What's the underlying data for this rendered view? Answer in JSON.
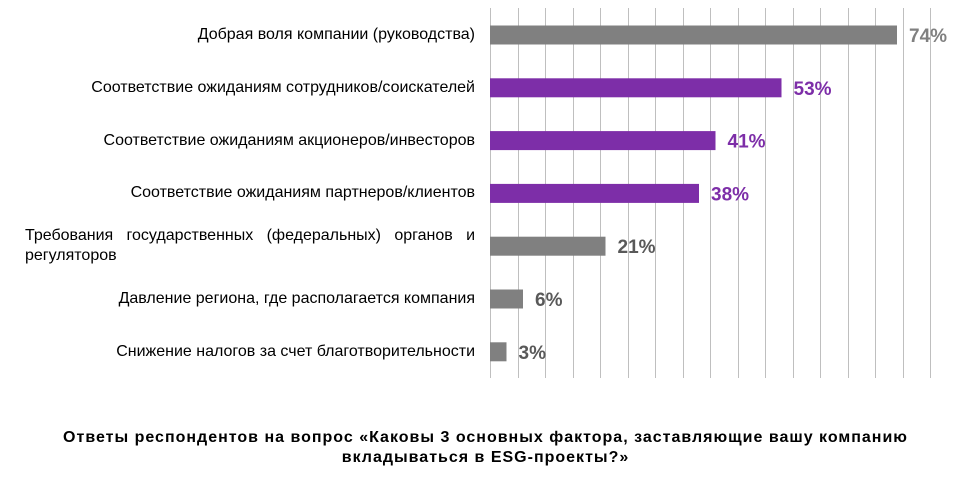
{
  "chart_data": {
    "type": "bar",
    "orientation": "horizontal",
    "categories": [
      "Добрая воля компании (руководства)",
      "Соответствие ожиданиям сотрудников/соискателей",
      "Соответствие ожиданиям акционеров/инвесторов",
      "Соответствие ожиданиям партнеров/клиентов",
      "Требования государственных (федеральных) органов и регуляторов",
      "Давление региона, где располагается компания",
      "Снижение налогов за счет благотворительности"
    ],
    "values": [
      74,
      53,
      41,
      38,
      21,
      6,
      3
    ],
    "value_labels": [
      "74%",
      "53%",
      "41%",
      "38%",
      "21%",
      "6%",
      "3%"
    ],
    "bar_colors": [
      "#808080",
      "#7d2ea8",
      "#7d2ea8",
      "#7d2ea8",
      "#808080",
      "#808080",
      "#808080"
    ],
    "label_colors": [
      "#808080",
      "#7d2ea8",
      "#7d2ea8",
      "#7d2ea8",
      "#595959",
      "#595959",
      "#595959"
    ],
    "xlim": [
      0,
      80
    ],
    "grid": true,
    "gridline_color": "#bfbfbf",
    "title": "",
    "xlabel": "",
    "ylabel": ""
  },
  "caption": "Ответы респондентов на вопрос «Каковы 3 основных фактора, заставляющие вашу компанию вкладываться в ESG-проекты?»"
}
